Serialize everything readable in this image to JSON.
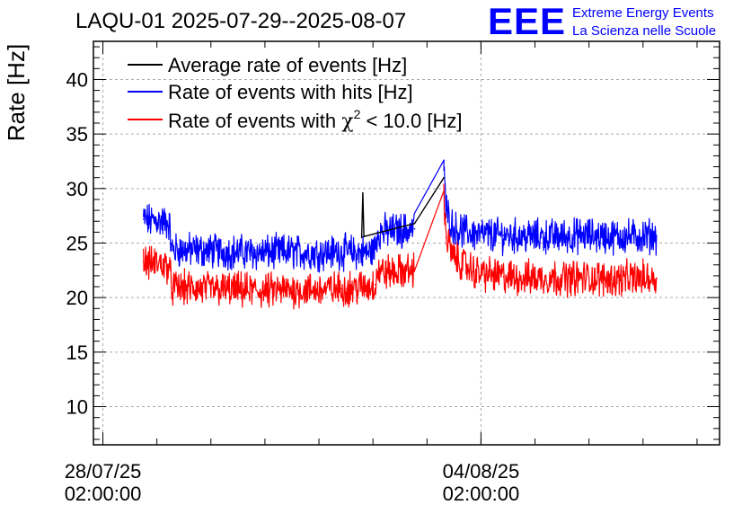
{
  "title": "LAQU-01 2025-07-29--2025-08-07",
  "logo": {
    "mark": "EEE",
    "line1": "Extreme Energy Events",
    "line2": "La Scienza nelle Scuole"
  },
  "colors": {
    "average": "#000000",
    "hits": "#0000ff",
    "chi2": "#ff0000",
    "logo": "#0000ff",
    "grid": "#aaaaaa"
  },
  "chart_data": {
    "type": "line",
    "title": "LAQU-01 2025-07-29--2025-08-07",
    "xlabel": "",
    "ylabel": "Rate [Hz]",
    "ylim": [
      6.5,
      43.5
    ],
    "xlim": [
      "2025-07-27T21:48:00",
      "2025-08-08T12:00:00"
    ],
    "grid": true,
    "legend_position": "top-left",
    "x_ticks": [
      {
        "x": "2025-07-28T02:00:00",
        "date": "28/07/25",
        "time": "02:00:00"
      },
      {
        "x": "2025-08-04T02:00:00",
        "date": "04/08/25",
        "time": "02:00:00"
      }
    ],
    "y_ticks": [
      10,
      15,
      20,
      25,
      30,
      35,
      40
    ],
    "legend": [
      {
        "key": "average",
        "label": "Average rate of events [Hz]"
      },
      {
        "key": "hits",
        "label": "Rate of events with hits [Hz]"
      },
      {
        "key": "chi2",
        "label_pre": "Rate of events with ",
        "label_chi": "χ",
        "label_sup": "2",
        "label_post": " < 10.0 [Hz]"
      }
    ],
    "series": [
      {
        "key": "hits",
        "name": "Rate of events with hits [Hz]",
        "points": [
          [
            "2025-07-28T20:00:00",
            27.2
          ],
          [
            "2025-07-28T23:00:00",
            27.0
          ],
          [
            "2025-07-29T02:00:00",
            27.1
          ],
          [
            "2025-07-29T05:00:00",
            26.9
          ],
          [
            "2025-07-29T07:30:00",
            26.8
          ],
          [
            "2025-07-29T08:30:00",
            24.4
          ],
          [
            "2025-07-30T00:00:00",
            24.3
          ],
          [
            "2025-07-30T12:00:00",
            24.2
          ],
          [
            "2025-07-31T00:00:00",
            24.1
          ],
          [
            "2025-07-31T12:00:00",
            24.2
          ],
          [
            "2025-08-01T00:00:00",
            24.1
          ],
          [
            "2025-08-01T12:00:00",
            24.2
          ],
          [
            "2025-08-02T00:00:00",
            24.1
          ],
          [
            "2025-08-02T03:00:00",
            24.5
          ],
          [
            "2025-08-02T04:00:00",
            26.0
          ],
          [
            "2025-08-02T10:00:00",
            26.1
          ],
          [
            "2025-08-02T16:00:00",
            26.2
          ],
          [
            "2025-08-02T20:30:00",
            26.3
          ],
          [
            "2025-08-03T09:30:00",
            32.6
          ],
          [
            "2025-08-03T10:30:00",
            28.0
          ],
          [
            "2025-08-03T14:00:00",
            26.3
          ],
          [
            "2025-08-04T00:00:00",
            25.8
          ],
          [
            "2025-08-04T12:00:00",
            25.7
          ],
          [
            "2025-08-05T00:00:00",
            25.6
          ],
          [
            "2025-08-05T12:00:00",
            25.6
          ],
          [
            "2025-08-06T00:00:00",
            25.7
          ],
          [
            "2025-08-06T12:00:00",
            25.6
          ],
          [
            "2025-08-07T00:00:00",
            25.6
          ],
          [
            "2025-08-07T08:00:00",
            25.7
          ]
        ]
      },
      {
        "key": "chi2",
        "name": "Rate of events with χ2 < 10.0 [Hz]",
        "points": [
          [
            "2025-07-28T20:00:00",
            23.3
          ],
          [
            "2025-07-28T23:00:00",
            23.1
          ],
          [
            "2025-07-29T02:00:00",
            23.2
          ],
          [
            "2025-07-29T05:00:00",
            23.0
          ],
          [
            "2025-07-29T07:30:00",
            22.9
          ],
          [
            "2025-07-29T08:30:00",
            20.9
          ],
          [
            "2025-07-30T00:00:00",
            20.8
          ],
          [
            "2025-07-30T12:00:00",
            20.7
          ],
          [
            "2025-07-31T00:00:00",
            20.6
          ],
          [
            "2025-07-31T12:00:00",
            20.7
          ],
          [
            "2025-08-01T00:00:00",
            20.7
          ],
          [
            "2025-08-01T12:00:00",
            20.8
          ],
          [
            "2025-08-02T00:00:00",
            21.0
          ],
          [
            "2025-08-02T03:00:00",
            21.2
          ],
          [
            "2025-08-02T04:00:00",
            22.4
          ],
          [
            "2025-08-02T10:00:00",
            22.3
          ],
          [
            "2025-08-02T16:00:00",
            22.4
          ],
          [
            "2025-08-02T20:30:00",
            22.5
          ],
          [
            "2025-08-03T09:30:00",
            29.8
          ],
          [
            "2025-08-03T10:30:00",
            25.5
          ],
          [
            "2025-08-03T14:00:00",
            23.6
          ],
          [
            "2025-08-04T00:00:00",
            22.3
          ],
          [
            "2025-08-04T12:00:00",
            21.9
          ],
          [
            "2025-08-05T00:00:00",
            21.8
          ],
          [
            "2025-08-05T12:00:00",
            21.8
          ],
          [
            "2025-08-06T00:00:00",
            21.8
          ],
          [
            "2025-08-06T12:00:00",
            21.7
          ],
          [
            "2025-08-07T00:00:00",
            21.8
          ],
          [
            "2025-08-07T08:00:00",
            21.8
          ]
        ]
      },
      {
        "key": "average",
        "name": "Average rate of events [Hz]",
        "points": [
          [
            "2025-08-01T21:00:00",
            25.5
          ],
          [
            "2025-08-01T21:30:00",
            29.6
          ],
          [
            "2025-08-01T22:00:00",
            25.6
          ],
          [
            "2025-08-02T20:30:00",
            26.8
          ],
          [
            "2025-08-03T09:30:00",
            31.0
          ]
        ]
      }
    ]
  }
}
